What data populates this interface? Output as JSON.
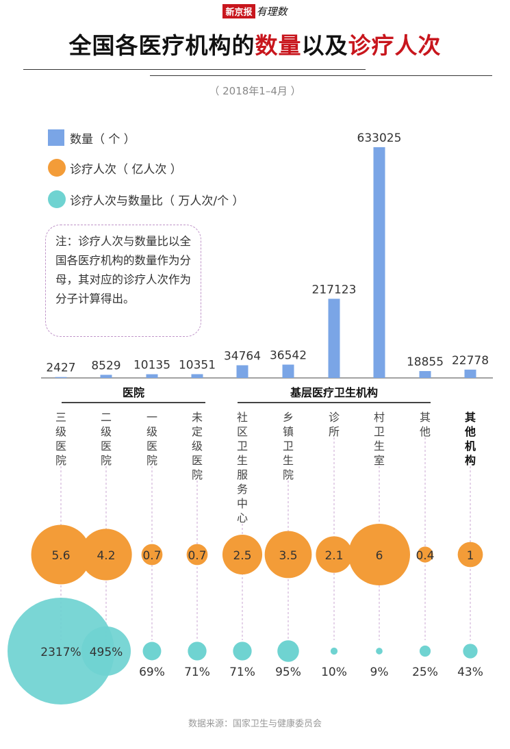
{
  "brand": {
    "name": "新京报",
    "column": "有理数"
  },
  "title": {
    "prefix": "全国各医疗机构的",
    "highlight1": "数量",
    "middle": "以及",
    "highlight2": "诊疗人次"
  },
  "subtitle": "（ 2018年1–4月 ）",
  "legend": [
    {
      "label": "数量（ 个 ）",
      "color": "#7aa5e6"
    },
    {
      "label": "诊疗人次（ 亿人次 ）",
      "color": "#f39c38"
    },
    {
      "label": "诊疗人次与数量比（ 万人次/个 ）",
      "color": "#6fd3d1"
    }
  ],
  "note": "注：诊疗人次与数量比以全国各医疗机构的数量作为分母，其对应的诊疗人次作为分子计算得出。",
  "groups": [
    {
      "label": "医院"
    },
    {
      "label": "基层医疗卫生机构"
    }
  ],
  "source": "数据来源：国家卫生与健康委员会",
  "chart_data": {
    "type": "bar",
    "categories": [
      "三级医院",
      "二级医院",
      "一级医院",
      "未定级医院",
      "社区卫生服务中心",
      "乡镇卫生院",
      "诊所",
      "村卫生室",
      "其他",
      "其他机构"
    ],
    "category_bold": [
      false,
      false,
      false,
      false,
      false,
      false,
      false,
      false,
      false,
      true
    ],
    "series": [
      {
        "name": "数量（ 个 ）",
        "values": [
          2427,
          8529,
          10135,
          10351,
          34764,
          36542,
          217123,
          633025,
          18855,
          22778
        ],
        "color": "#7aa5e6"
      },
      {
        "name": "诊疗人次（ 亿人次 ）",
        "values": [
          5.6,
          4.2,
          0.7,
          0.7,
          2.5,
          3.5,
          2.1,
          6,
          0.4,
          1
        ],
        "color": "#f39c38"
      },
      {
        "name": "诊疗人次与数量比（ 万人次/个 ）",
        "values": [
          2317,
          495,
          69,
          71,
          71,
          95,
          10,
          9,
          25,
          43
        ],
        "labels": [
          "2317%",
          "495%",
          "69%",
          "71%",
          "71%",
          "95%",
          "10%",
          "9%",
          "25%",
          "43%"
        ],
        "color": "#6fd3d1"
      }
    ]
  }
}
